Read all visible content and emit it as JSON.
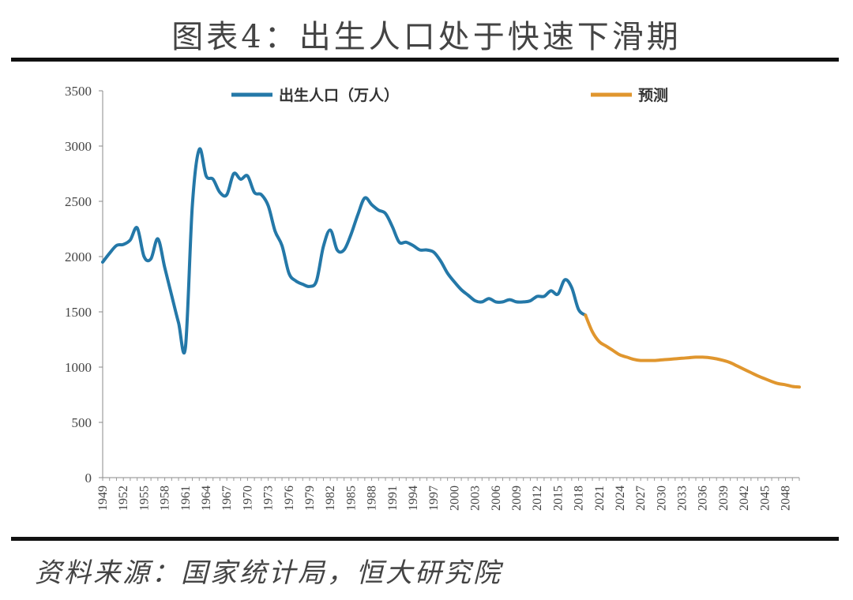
{
  "title": "图表4：出生人口处于快速下滑期",
  "source": "资料来源：国家统计局，恒大研究院",
  "colors": {
    "actual": "#2478a8",
    "forecast": "#e0962e"
  },
  "chart_data": {
    "type": "line",
    "title": "图表4：出生人口处于快速下滑期",
    "ylim": [
      0,
      3500
    ],
    "yticks": [
      0,
      500,
      1000,
      1500,
      2000,
      2500,
      3000,
      3500
    ],
    "xlim": [
      1949,
      2050
    ],
    "xticks": [
      1949,
      1952,
      1955,
      1958,
      1961,
      1964,
      1967,
      1970,
      1973,
      1976,
      1979,
      1982,
      1985,
      1988,
      1991,
      1994,
      1997,
      2000,
      2003,
      2006,
      2009,
      2012,
      2015,
      2018,
      2021,
      2024,
      2027,
      2030,
      2033,
      2036,
      2039,
      2042,
      2045,
      2048
    ],
    "legend_position": "top",
    "grid": false,
    "series": [
      {
        "name": "出生人口（万人）",
        "color": "#2478a8",
        "x": [
          1949,
          1950,
          1951,
          1952,
          1953,
          1954,
          1955,
          1956,
          1957,
          1958,
          1959,
          1960,
          1961,
          1962,
          1963,
          1964,
          1965,
          1966,
          1967,
          1968,
          1969,
          1970,
          1971,
          1972,
          1973,
          1974,
          1975,
          1976,
          1977,
          1978,
          1979,
          1980,
          1981,
          1982,
          1983,
          1984,
          1985,
          1986,
          1987,
          1988,
          1989,
          1990,
          1991,
          1992,
          1993,
          1994,
          1995,
          1996,
          1997,
          1998,
          1999,
          2000,
          2001,
          2002,
          2003,
          2004,
          2005,
          2006,
          2007,
          2008,
          2009,
          2010,
          2011,
          2012,
          2013,
          2014,
          2015,
          2016,
          2017,
          2018,
          2019
        ],
        "y": [
          1950,
          2030,
          2100,
          2110,
          2150,
          2260,
          2000,
          1980,
          2160,
          1900,
          1650,
          1400,
          1180,
          2460,
          2970,
          2730,
          2700,
          2580,
          2560,
          2750,
          2700,
          2730,
          2580,
          2560,
          2460,
          2230,
          2100,
          1850,
          1780,
          1750,
          1730,
          1780,
          2090,
          2240,
          2060,
          2060,
          2200,
          2380,
          2530,
          2470,
          2420,
          2390,
          2270,
          2130,
          2130,
          2100,
          2060,
          2060,
          2040,
          1960,
          1850,
          1770,
          1700,
          1650,
          1600,
          1590,
          1620,
          1590,
          1590,
          1610,
          1590,
          1590,
          1600,
          1640,
          1640,
          1690,
          1660,
          1790,
          1720,
          1520,
          1470
        ]
      },
      {
        "name": "预测",
        "color": "#e0962e",
        "x": [
          2019,
          2020,
          2021,
          2022,
          2023,
          2024,
          2025,
          2026,
          2027,
          2028,
          2029,
          2030,
          2031,
          2032,
          2033,
          2034,
          2035,
          2036,
          2037,
          2038,
          2039,
          2040,
          2041,
          2042,
          2043,
          2044,
          2045,
          2046,
          2047,
          2048,
          2049,
          2050
        ],
        "y": [
          1470,
          1320,
          1230,
          1190,
          1150,
          1110,
          1090,
          1070,
          1060,
          1060,
          1060,
          1065,
          1070,
          1075,
          1080,
          1085,
          1090,
          1090,
          1085,
          1075,
          1060,
          1040,
          1010,
          980,
          950,
          920,
          895,
          870,
          850,
          840,
          825,
          820
        ]
      }
    ]
  }
}
